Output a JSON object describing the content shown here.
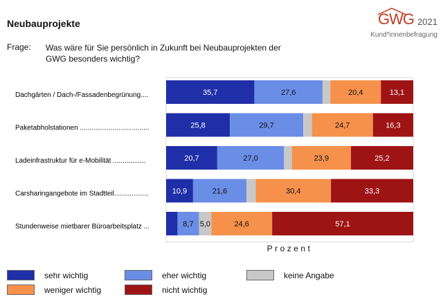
{
  "header": {
    "title": "Neubauprojekte",
    "logo_text": "GWG",
    "logo_year": "2021",
    "logo_subtitle": "Kund*innenbefragung"
  },
  "question": {
    "label": "Frage:",
    "text": "Was wäre für Sie persönlich in Zukunft bei Neubauprojekten der GWG besonders wichtig?"
  },
  "colors": {
    "sehr_wichtig": "#1f2fa8",
    "eher_wichtig": "#6a8ee6",
    "keine_angabe": "#c8c8c8",
    "weniger_wichtig": "#f5914a",
    "nicht_wichtig": "#9e1414"
  },
  "chart_data": {
    "type": "bar",
    "orientation": "horizontal",
    "stacked": true,
    "percent_stacked": true,
    "xlabel": "Prozent",
    "xlim": [
      0,
      100
    ],
    "categories": [
      "Dachgärten / Dach-/Fassadenbegrünung....",
      "Paketabholstationen ....................................",
      "Ladeinfrastruktur für e-Mobilität .................",
      "Carsharingangebote im Stadtteil..................",
      "Stundenweise mietbarer Büroarbeitsplatz ..."
    ],
    "series": [
      {
        "name": "sehr wichtig",
        "values": [
          35.7,
          25.8,
          20.7,
          10.9,
          4.6
        ],
        "labels": [
          "35,7",
          "25,8",
          "20,7",
          "10,9",
          ""
        ]
      },
      {
        "name": "eher wichtig",
        "values": [
          27.6,
          29.7,
          27.0,
          21.6,
          8.7
        ],
        "labels": [
          "27,6",
          "29,7",
          "27,0",
          "21,6",
          "8,7"
        ]
      },
      {
        "name": "keine Angabe",
        "values": [
          3.2,
          3.5,
          3.2,
          3.8,
          5.0
        ],
        "labels": [
          "",
          "",
          "",
          "",
          "5,0"
        ]
      },
      {
        "name": "weniger wichtig",
        "values": [
          20.4,
          24.7,
          23.9,
          30.4,
          24.6
        ],
        "labels": [
          "20,4",
          "24,7",
          "23,9",
          "30,4",
          "24,6"
        ]
      },
      {
        "name": "nicht wichtig",
        "values": [
          13.1,
          16.3,
          25.2,
          33.3,
          57.1
        ],
        "labels": [
          "13,1",
          "16,3",
          "25,2",
          "33,3",
          "57,1"
        ]
      }
    ],
    "legend_position": "bottom"
  }
}
